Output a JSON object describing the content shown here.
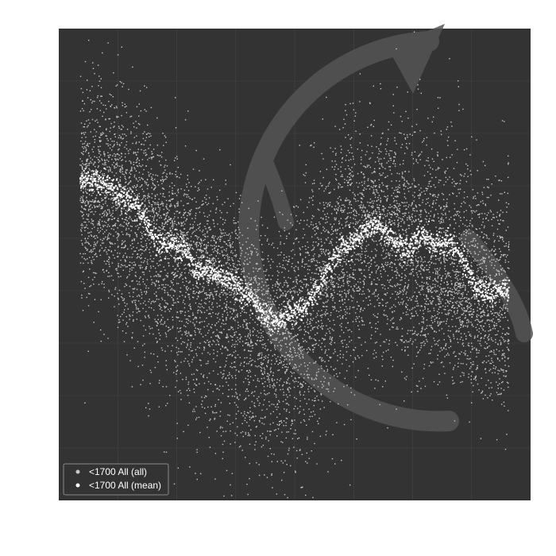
{
  "colors": {
    "page_background": "#ffffff",
    "plot_background": "#333333",
    "grid": "#555555",
    "watermark": "#555555",
    "points_all": "#c8c8c8",
    "points_mean": "#ffffff",
    "legend_border": "#8a8a8a"
  },
  "legend": {
    "entries": [
      "<1700 All (all)",
      "<1700 All (mean)"
    ],
    "placement": "bottom-left"
  },
  "chart_data": {
    "type": "scatter",
    "title": "",
    "xlabel": "",
    "ylabel": "",
    "tick_labels_shown": false,
    "grid": true,
    "grid_cells": {
      "x": 8,
      "y": 9
    },
    "xlim": [
      0,
      1
    ],
    "ylim": [
      0,
      1
    ],
    "watermark": "circular-arrow",
    "series": [
      {
        "name": "<1700 All (all)",
        "role": "scatter-cloud",
        "approx_points": 15000,
        "x": [
          0.0,
          0.05,
          0.1,
          0.15,
          0.2,
          0.25,
          0.3,
          0.35,
          0.4,
          0.45,
          0.5,
          0.55,
          0.6,
          0.65,
          0.7,
          0.75,
          0.8,
          0.85,
          0.9,
          0.95,
          1.0
        ],
        "center": [
          0.66,
          0.65,
          0.63,
          0.6,
          0.55,
          0.52,
          0.47,
          0.44,
          0.4,
          0.35,
          0.36,
          0.42,
          0.5,
          0.55,
          0.58,
          0.55,
          0.5,
          0.48,
          0.44,
          0.42,
          0.41
        ],
        "upper": [
          0.88,
          0.88,
          0.85,
          0.8,
          0.74,
          0.7,
          0.66,
          0.62,
          0.56,
          0.55,
          0.6,
          0.7,
          0.76,
          0.79,
          0.8,
          0.8,
          0.78,
          0.75,
          0.72,
          0.7,
          0.68
        ],
        "lower": [
          0.45,
          0.42,
          0.35,
          0.3,
          0.25,
          0.2,
          0.16,
          0.12,
          0.08,
          0.06,
          0.08,
          0.13,
          0.22,
          0.3,
          0.32,
          0.3,
          0.28,
          0.26,
          0.24,
          0.22,
          0.2
        ]
      },
      {
        "name": "<1700 All (mean)",
        "role": "mean-line",
        "x": [
          0.0,
          0.03,
          0.06,
          0.09,
          0.12,
          0.15,
          0.17,
          0.2,
          0.22,
          0.25,
          0.27,
          0.3,
          0.33,
          0.36,
          0.4,
          0.43,
          0.46,
          0.49,
          0.52,
          0.55,
          0.58,
          0.61,
          0.64,
          0.67,
          0.69,
          0.72,
          0.74,
          0.77,
          0.8,
          0.83,
          0.86,
          0.88,
          0.9,
          0.92,
          0.94,
          0.96,
          0.98,
          1.0
        ],
        "y": [
          0.68,
          0.68,
          0.67,
          0.65,
          0.63,
          0.6,
          0.56,
          0.54,
          0.55,
          0.53,
          0.48,
          0.49,
          0.48,
          0.46,
          0.43,
          0.39,
          0.38,
          0.4,
          0.41,
          0.44,
          0.5,
          0.54,
          0.55,
          0.58,
          0.59,
          0.56,
          0.54,
          0.54,
          0.57,
          0.54,
          0.55,
          0.53,
          0.5,
          0.46,
          0.44,
          0.44,
          0.45,
          0.45
        ]
      }
    ]
  }
}
